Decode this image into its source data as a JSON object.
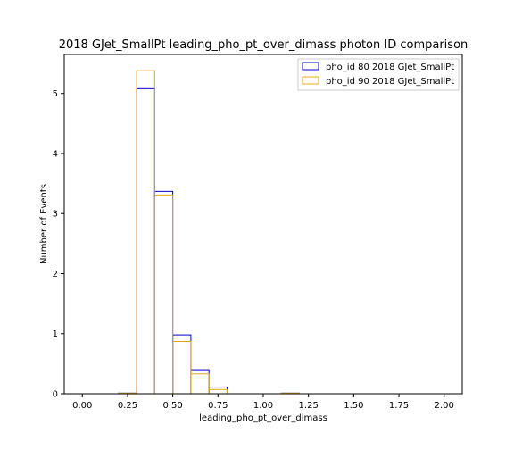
{
  "chart_data": {
    "type": "histogram",
    "title": "2018 GJet_SmallPt leading_pho_pt_over_dimass photon ID comparison",
    "xlabel": "leading_pho_pt_over_dimass",
    "ylabel": "Number of Events",
    "xlim": [
      -0.1,
      2.1
    ],
    "ylim": [
      0,
      5.65
    ],
    "xticks": [
      0.0,
      0.25,
      0.5,
      0.75,
      1.0,
      1.25,
      1.5,
      1.75,
      2.0
    ],
    "xtick_labels": [
      "0.00",
      "0.25",
      "0.50",
      "0.75",
      "1.00",
      "1.25",
      "1.50",
      "1.75",
      "2.00"
    ],
    "yticks": [
      0,
      1,
      2,
      3,
      4,
      5
    ],
    "ytick_labels": [
      "0",
      "1",
      "2",
      "3",
      "4",
      "5"
    ],
    "bin_edges": [
      0.0,
      0.1,
      0.2,
      0.3,
      0.4,
      0.5,
      0.6,
      0.7,
      0.8,
      0.9,
      1.0,
      1.1,
      1.2,
      1.3,
      1.4,
      1.5,
      1.6,
      1.7,
      1.8,
      1.9,
      2.0
    ],
    "series": [
      {
        "name": "pho_id 80 2018 GJet_SmallPt",
        "color": "#0000cc",
        "values": [
          0,
          0,
          0.01,
          5.08,
          3.37,
          0.98,
          0.4,
          0.11,
          0,
          0,
          0,
          0.01,
          0,
          0,
          0,
          0,
          0,
          0,
          0,
          0
        ]
      },
      {
        "name": "pho_id 90 2018 GJet_SmallPt",
        "color": "#e6a817",
        "values": [
          0,
          0,
          0.01,
          5.38,
          3.31,
          0.87,
          0.33,
          0.07,
          0,
          0,
          0,
          0.01,
          0,
          0,
          0,
          0,
          0,
          0,
          0,
          0
        ]
      }
    ],
    "legend": "top-right",
    "grid": false
  }
}
